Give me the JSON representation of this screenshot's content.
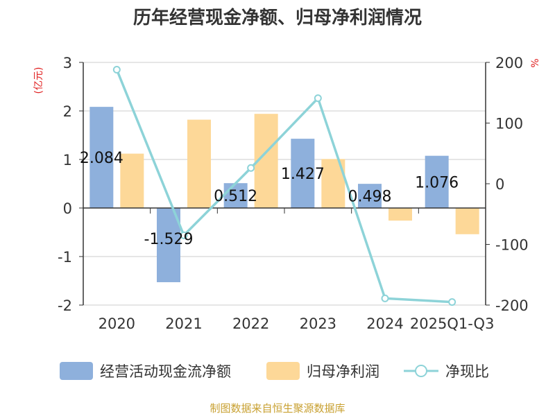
{
  "chart_data": {
    "type": "bar+line",
    "title": "历年经营现金净额、归母净利润情况",
    "categories": [
      "2020",
      "2021",
      "2022",
      "2023",
      "2024",
      "2025Q1-Q3"
    ],
    "series": [
      {
        "name": "经营活动现金流净额",
        "type": "bar",
        "axis": "left",
        "color": "#8eb0dc",
        "values": [
          2.084,
          -1.529,
          0.512,
          1.427,
          0.498,
          1.076
        ]
      },
      {
        "name": "归母净利润",
        "type": "bar",
        "axis": "left",
        "color": "#fdd898",
        "values": [
          1.12,
          1.82,
          1.94,
          1.01,
          -0.26,
          -0.54
        ]
      },
      {
        "name": "净现比",
        "type": "line",
        "axis": "right",
        "color": "#8dd3d8",
        "values": [
          188,
          -85,
          26,
          141,
          -189,
          -195
        ]
      }
    ],
    "data_labels": [
      "2.084",
      "-1.529",
      "0.512",
      "1.427",
      "0.498",
      "1.076"
    ],
    "left_axis": {
      "unit": "(亿元)",
      "ylim": [
        -2,
        3
      ],
      "ticks": [
        "3",
        "2",
        "1",
        "0",
        "-1",
        "-2"
      ],
      "tick_values": [
        3,
        2,
        1,
        0,
        -1,
        -2
      ]
    },
    "right_axis": {
      "unit": "%",
      "ylim": [
        -200,
        200
      ],
      "ticks": [
        "200",
        "100",
        "0",
        "-100",
        "-200"
      ],
      "tick_values": [
        200,
        100,
        0,
        -100,
        -200
      ]
    },
    "legend_position": "bottom",
    "grid": true
  },
  "source": "制图数据来自恒生聚源数据库"
}
